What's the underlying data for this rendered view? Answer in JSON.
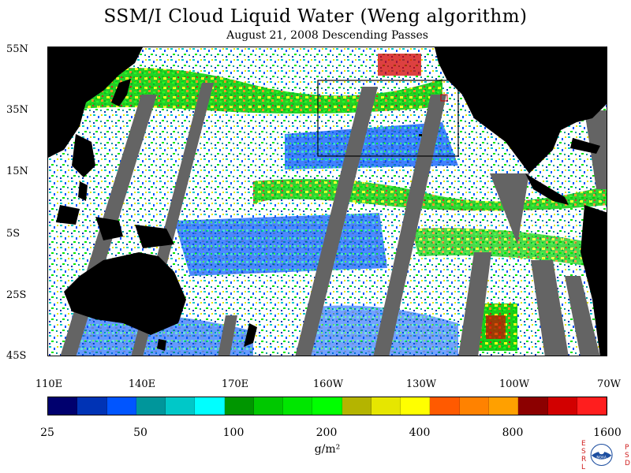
{
  "title": "SSM/I Cloud Liquid Water (Weng algorithm)",
  "subtitle": "August 21, 2008  Descending Passes",
  "latitude_labels": [
    "55N",
    "35N",
    "15N",
    "5S",
    "25S",
    "45S"
  ],
  "longitude_labels": [
    "110E",
    "140E",
    "170E",
    "160W",
    "130W",
    "100W",
    "70W"
  ],
  "colorbar": {
    "colors": [
      "#00006e",
      "#0033b5",
      "#0055ff",
      "#00969b",
      "#00c8c8",
      "#00ffff",
      "#009600",
      "#00c800",
      "#00e600",
      "#00ff00",
      "#b4b400",
      "#e6e600",
      "#ffff00",
      "#ff5a00",
      "#ff8200",
      "#ffa000",
      "#8c0000",
      "#d20000",
      "#ff1e1e"
    ],
    "tick_labels": [
      "25",
      "50",
      "100",
      "200",
      "400",
      "800",
      "1600"
    ],
    "units": "g/m²"
  },
  "logo": {
    "name": "noaa-logo",
    "left_letters": "ESRL",
    "right_letters": "PSD",
    "center_text": "NOAA"
  },
  "map_colors": {
    "land": "#000000",
    "no_data": "#646464",
    "ocean_clear": "#ffffff"
  }
}
